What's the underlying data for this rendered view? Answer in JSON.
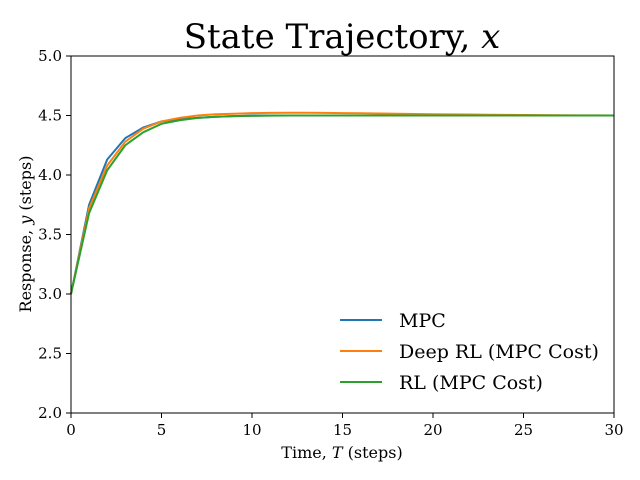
{
  "chart_data": {
    "type": "line",
    "title": "State Trajectory, x",
    "title_parts": {
      "text": "State Trajectory, ",
      "var": "x"
    },
    "xlabel": "Time, T (steps)",
    "xlabel_parts": {
      "pre": "Time, ",
      "var": "T",
      "post": " (steps)"
    },
    "ylabel": "Response, y (steps)",
    "ylabel_parts": {
      "pre": "Response, ",
      "var": "y",
      "post": " (steps)"
    },
    "xlim": [
      0,
      30
    ],
    "ylim": [
      2.0,
      5.0
    ],
    "xticks": [
      0,
      5,
      10,
      15,
      20,
      25,
      30
    ],
    "xtick_labels": [
      "0",
      "5",
      "10",
      "15",
      "20",
      "25",
      "30"
    ],
    "yticks": [
      2.0,
      2.5,
      3.0,
      3.5,
      4.0,
      4.5,
      5.0
    ],
    "ytick_labels": [
      "2.0",
      "2.5",
      "3.0",
      "3.5",
      "4.0",
      "4.5",
      "5.0"
    ],
    "grid": false,
    "legend_position": "bottom-right",
    "series": [
      {
        "name": "MPC",
        "color": "#1f77b4",
        "x": [
          0,
          1,
          2,
          3,
          4,
          5,
          6,
          7,
          8,
          9,
          10,
          11,
          12,
          13,
          14,
          15,
          16,
          17,
          18,
          19,
          20,
          21,
          22,
          23,
          24,
          25,
          26,
          27,
          28,
          29,
          30
        ],
        "values": [
          3.0,
          3.75,
          4.13,
          4.31,
          4.4,
          4.45,
          4.47,
          4.48,
          4.49,
          4.495,
          4.5,
          4.5,
          4.5,
          4.5,
          4.5,
          4.5,
          4.5,
          4.5,
          4.5,
          4.5,
          4.5,
          4.5,
          4.5,
          4.5,
          4.5,
          4.5,
          4.5,
          4.5,
          4.5,
          4.5,
          4.5
        ]
      },
      {
        "name": "Deep RL (MPC Cost)",
        "color": "#ff7f0e",
        "x": [
          0,
          1,
          2,
          3,
          4,
          5,
          6,
          7,
          8,
          9,
          10,
          11,
          12,
          13,
          14,
          15,
          16,
          17,
          18,
          19,
          20,
          21,
          22,
          23,
          24,
          25,
          26,
          27,
          28,
          29,
          30
        ],
        "values": [
          3.0,
          3.72,
          4.08,
          4.28,
          4.39,
          4.45,
          4.48,
          4.5,
          4.51,
          4.515,
          4.52,
          4.522,
          4.523,
          4.523,
          4.522,
          4.52,
          4.519,
          4.517,
          4.515,
          4.513,
          4.511,
          4.509,
          4.508,
          4.506,
          4.505,
          4.504,
          4.503,
          4.502,
          4.501,
          4.501,
          4.5
        ]
      },
      {
        "name": "RL (MPC Cost)",
        "color": "#2ca02c",
        "x": [
          0,
          1,
          2,
          3,
          4,
          5,
          6,
          7,
          8,
          9,
          10,
          11,
          12,
          13,
          14,
          15,
          16,
          17,
          18,
          19,
          20,
          21,
          22,
          23,
          24,
          25,
          26,
          27,
          28,
          29,
          30
        ],
        "values": [
          3.0,
          3.68,
          4.04,
          4.25,
          4.36,
          4.43,
          4.46,
          4.48,
          4.49,
          4.495,
          4.497,
          4.499,
          4.5,
          4.5,
          4.5,
          4.5,
          4.5,
          4.5,
          4.5,
          4.5,
          4.5,
          4.5,
          4.5,
          4.5,
          4.5,
          4.5,
          4.5,
          4.5,
          4.5,
          4.5,
          4.5
        ]
      }
    ]
  }
}
